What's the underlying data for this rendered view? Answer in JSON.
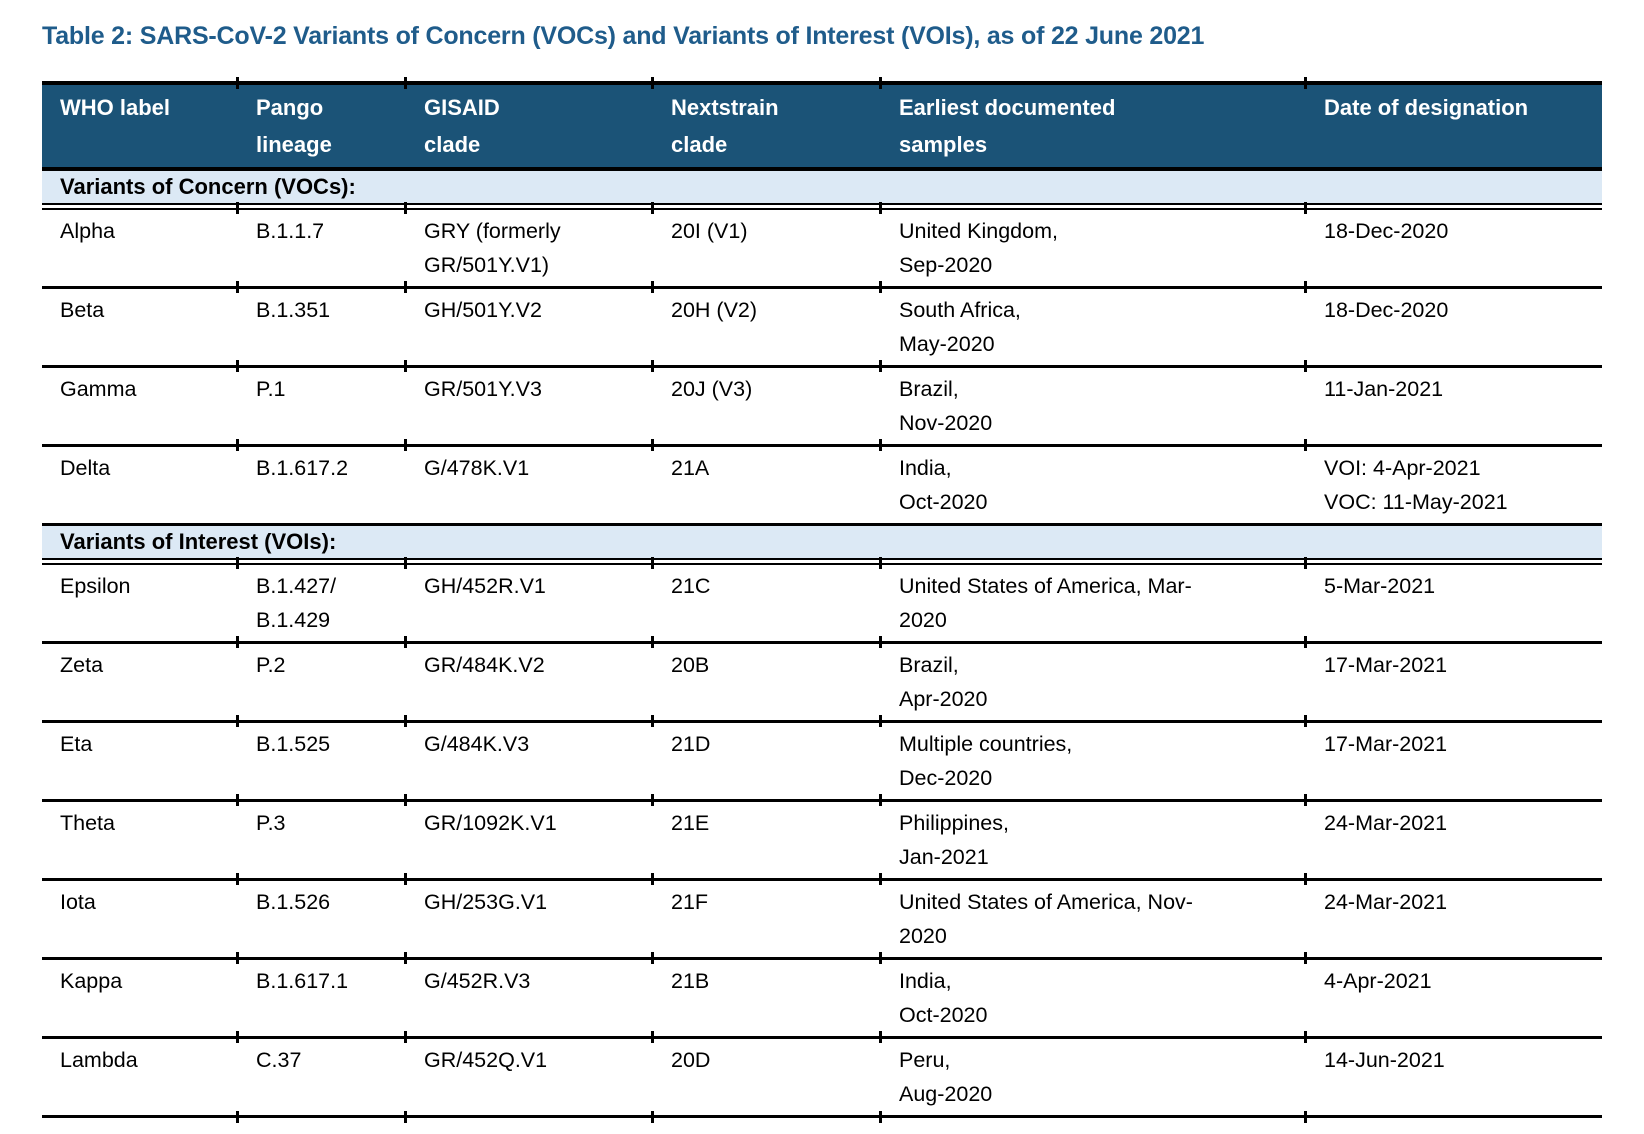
{
  "title": "Table 2: SARS-CoV-2 Variants of Concern (VOCs) and Variants of Interest (VOIs), as of 22 June 2021",
  "colors": {
    "title_color": "#1F5C8B",
    "header_bg": "#1B5377",
    "section_bg": "#DCE9F5",
    "rule_color": "#000000"
  },
  "table": {
    "columns": [
      "WHO label",
      "Pango\nlineage",
      "GISAID\nclade",
      "Nextstrain\nclade",
      "Earliest documented\nsamples",
      "Date of designation"
    ],
    "sections": [
      {
        "label": "Variants of Concern (VOCs):",
        "rows": [
          [
            "Alpha",
            "B.1.1.7",
            "GRY (formerly\nGR/501Y.V1)",
            "20I (V1)",
            "United Kingdom,\nSep-2020",
            "18-Dec-2020"
          ],
          [
            "Beta",
            "B.1.351",
            "GH/501Y.V2",
            "20H (V2)",
            "South Africa,\nMay-2020",
            "18-Dec-2020"
          ],
          [
            "Gamma",
            "P.1",
            "GR/501Y.V3",
            "20J (V3)",
            "Brazil,\nNov-2020",
            "11-Jan-2021"
          ],
          [
            "Delta",
            "B.1.617.2",
            "G/478K.V1",
            "21A",
            "India,\nOct-2020",
            "VOI: 4-Apr-2021\nVOC: 11-May-2021"
          ]
        ]
      },
      {
        "label": "Variants of Interest (VOIs):",
        "rows": [
          [
            "Epsilon",
            "B.1.427/\nB.1.429",
            "GH/452R.V1",
            "21C",
            "United States of America, Mar-\n2020",
            "5-Mar-2021"
          ],
          [
            "Zeta",
            "P.2",
            "GR/484K.V2",
            "20B",
            "Brazil,\nApr-2020",
            "17-Mar-2021"
          ],
          [
            "Eta",
            "B.1.525",
            "G/484K.V3",
            "21D",
            "Multiple countries,\nDec-2020",
            "17-Mar-2021"
          ],
          [
            "Theta",
            "P.3",
            "GR/1092K.V1",
            "21E",
            "Philippines,\nJan-2021",
            "24-Mar-2021"
          ],
          [
            "Iota",
            "B.1.526",
            "GH/253G.V1",
            "21F",
            "United States of America, Nov-\n2020",
            "24-Mar-2021"
          ],
          [
            "Kappa",
            "B.1.617.1",
            "G/452R.V3",
            "21B",
            "India,\nOct-2020",
            "4-Apr-2021"
          ],
          [
            "Lambda",
            "C.37",
            "GR/452Q.V1",
            "20D",
            "Peru,\nAug-2020",
            "14-Jun-2021"
          ]
        ]
      }
    ]
  }
}
